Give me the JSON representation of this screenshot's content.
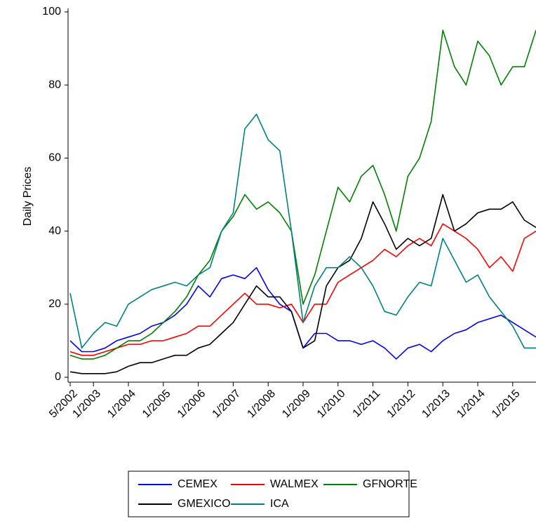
{
  "chart_data": {
    "type": "line",
    "y_label": "Daily Prices",
    "x": [
      "2002-05",
      "2002-09",
      "2003-01",
      "2003-05",
      "2003-09",
      "2004-01",
      "2004-05",
      "2004-09",
      "2005-01",
      "2005-05",
      "2005-09",
      "2006-01",
      "2006-05",
      "2006-09",
      "2007-01",
      "2007-05",
      "2007-09",
      "2008-01",
      "2008-05",
      "2008-09",
      "2009-01",
      "2009-05",
      "2009-09",
      "2010-01",
      "2010-05",
      "2010-09",
      "2011-01",
      "2011-05",
      "2011-09",
      "2012-01",
      "2012-05",
      "2012-09",
      "2013-01",
      "2013-05",
      "2013-09",
      "2014-01",
      "2014-05",
      "2014-09",
      "2015-01",
      "2015-05",
      "2015-09"
    ],
    "xlim": [
      "2002-05",
      "2015-09"
    ],
    "xticks": [
      {
        "value": "2002-05",
        "label": "5/2002"
      },
      {
        "value": "2003-01",
        "label": "1/2003"
      },
      {
        "value": "2004-01",
        "label": "1/2004"
      },
      {
        "value": "2005-01",
        "label": "1/2005"
      },
      {
        "value": "2006-01",
        "label": "1/2006"
      },
      {
        "value": "2007-01",
        "label": "1/2007"
      },
      {
        "value": "2008-01",
        "label": "1/2008"
      },
      {
        "value": "2009-01",
        "label": "1/2009"
      },
      {
        "value": "2010-01",
        "label": "1/2010"
      },
      {
        "value": "2011-01",
        "label": "1/2011"
      },
      {
        "value": "2012-01",
        "label": "1/2012"
      },
      {
        "value": "2013-01",
        "label": "1/2013"
      },
      {
        "value": "2014-01",
        "label": "1/2014"
      },
      {
        "value": "2015-01",
        "label": "1/2015"
      }
    ],
    "ylim": [
      0,
      100
    ],
    "yticks": [
      0,
      20,
      40,
      60,
      80,
      100
    ],
    "series": [
      {
        "name": "CEMEX",
        "color": "#0000ff",
        "values": [
          10,
          7,
          7,
          8,
          10,
          11,
          12,
          14,
          15,
          17,
          20,
          25,
          22,
          27,
          28,
          27,
          30,
          24,
          20,
          18,
          8,
          12,
          12,
          10,
          10,
          9,
          10,
          8,
          5,
          8,
          9,
          7,
          10,
          12,
          13,
          15,
          16,
          17,
          15,
          13,
          11
        ]
      },
      {
        "name": "WALMEX",
        "color": "#ff0000",
        "values": [
          7,
          6,
          6,
          7,
          8,
          9,
          9,
          10,
          10,
          11,
          12,
          14,
          14,
          17,
          20,
          23,
          20,
          20,
          19,
          20,
          15,
          20,
          20,
          26,
          28,
          30,
          32,
          35,
          33,
          36,
          38,
          36,
          42,
          40,
          38,
          35,
          30,
          33,
          29,
          38,
          40
        ]
      },
      {
        "name": "GFNORTE",
        "color": "#008000",
        "values": [
          6,
          5,
          5,
          6,
          8,
          10,
          10,
          12,
          15,
          18,
          22,
          28,
          32,
          40,
          44,
          50,
          46,
          48,
          45,
          40,
          20,
          28,
          40,
          52,
          48,
          55,
          58,
          50,
          40,
          55,
          60,
          70,
          95,
          85,
          80,
          92,
          88,
          80,
          85,
          85,
          95
        ]
      },
      {
        "name": "GMEXICO",
        "color": "#000000",
        "values": [
          1.5,
          1,
          1,
          1,
          1.5,
          3,
          4,
          4,
          5,
          6,
          6,
          8,
          9,
          12,
          15,
          20,
          25,
          22,
          22,
          18,
          8,
          10,
          25,
          30,
          32,
          38,
          48,
          42,
          35,
          38,
          36,
          38,
          50,
          40,
          42,
          45,
          46,
          46,
          48,
          43,
          41
        ]
      },
      {
        "name": "ICA",
        "color": "#008080",
        "values": [
          23,
          8,
          12,
          15,
          14,
          20,
          22,
          24,
          25,
          26,
          25,
          28,
          30,
          40,
          45,
          68,
          72,
          65,
          62,
          40,
          15,
          25,
          30,
          30,
          33,
          30,
          25,
          18,
          17,
          22,
          26,
          25,
          38,
          32,
          26,
          28,
          22,
          18,
          14,
          8,
          8
        ]
      }
    ]
  }
}
